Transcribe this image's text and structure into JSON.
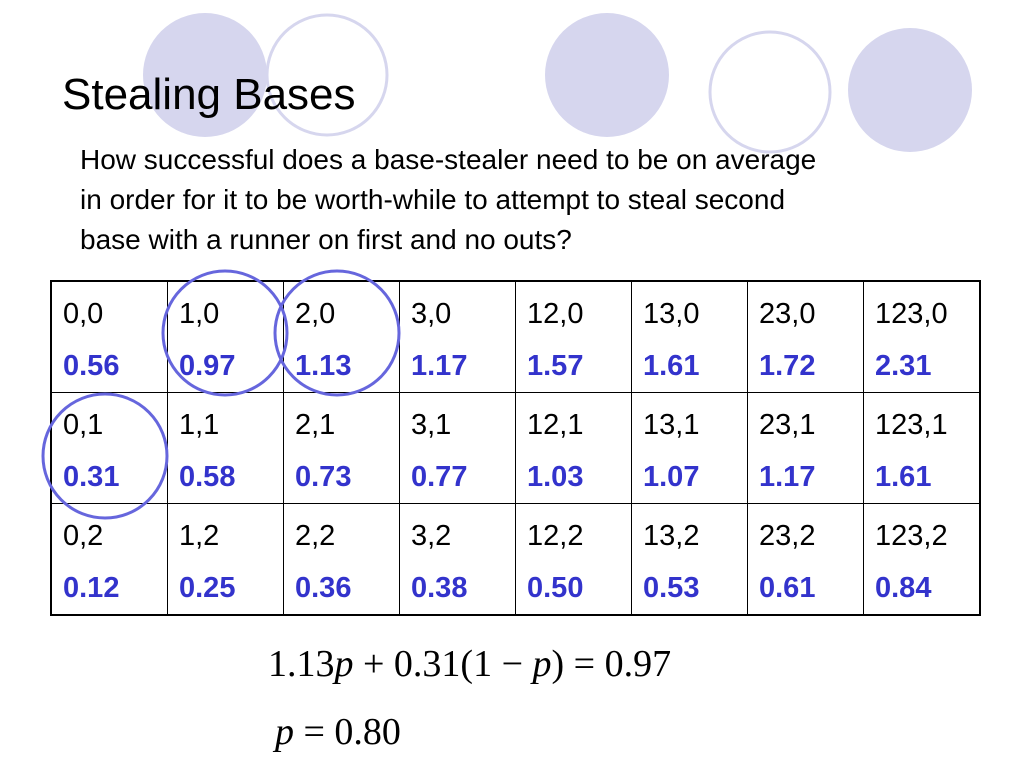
{
  "header": {
    "title": "Stealing Bases"
  },
  "body": {
    "lines": [
      "How successful does a base-stealer need to be on average",
      "in order for it to be worth-while to attempt to steal second",
      "base with a runner on first and no outs?"
    ]
  },
  "table": {
    "rows": [
      [
        {
          "label": "0,0",
          "value": "0.56"
        },
        {
          "label": "1,0",
          "value": "0.97"
        },
        {
          "label": "2,0",
          "value": "1.13"
        },
        {
          "label": "3,0",
          "value": "1.17"
        },
        {
          "label": "12,0",
          "value": "1.57"
        },
        {
          "label": "13,0",
          "value": "1.61"
        },
        {
          "label": "23,0",
          "value": "1.72"
        },
        {
          "label": "123,0",
          "value": "2.31"
        }
      ],
      [
        {
          "label": "0,1",
          "value": "0.31"
        },
        {
          "label": "1,1",
          "value": "0.58"
        },
        {
          "label": "2,1",
          "value": "0.73"
        },
        {
          "label": "3,1",
          "value": "0.77"
        },
        {
          "label": "12,1",
          "value": "1.03"
        },
        {
          "label": "13,1",
          "value": "1.07"
        },
        {
          "label": "23,1",
          "value": "1.17"
        },
        {
          "label": "123,1",
          "value": "1.61"
        }
      ],
      [
        {
          "label": "0,2",
          "value": "0.12"
        },
        {
          "label": "1,2",
          "value": "0.25"
        },
        {
          "label": "2,2",
          "value": "0.36"
        },
        {
          "label": "3,2",
          "value": "0.38"
        },
        {
          "label": "12,2",
          "value": "0.50"
        },
        {
          "label": "13,2",
          "value": "0.53"
        },
        {
          "label": "23,2",
          "value": "0.61"
        },
        {
          "label": "123,2",
          "value": "0.84"
        }
      ]
    ]
  },
  "equations": [
    [
      "1.13",
      "p",
      " + 0.31(1 − ",
      "p",
      ") = 0.97"
    ],
    [
      "p",
      " = 0.80"
    ]
  ]
}
